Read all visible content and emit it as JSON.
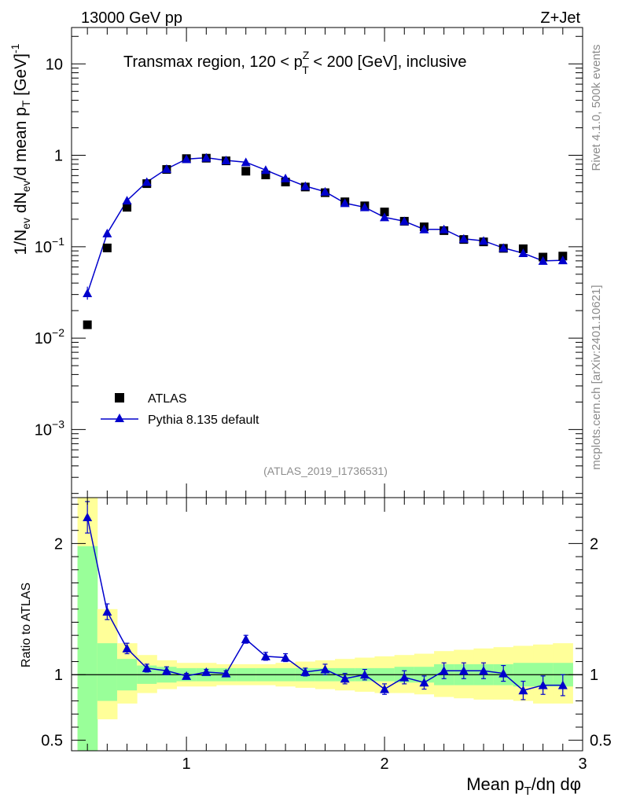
{
  "header": {
    "energy": "13000 GeV pp",
    "process": "Z+Jet"
  },
  "side_texts": {
    "rivet": "Rivet 4.1.0,  500k events",
    "mcplots": "mcplots.cern.ch [arXiv:2401.10621]"
  },
  "colors": {
    "data_marker": "#000000",
    "mc_line": "#0000cc",
    "band_inner": "#99ff99",
    "band_outer": "#ffff99"
  },
  "chart_data": [
    {
      "type": "scatter",
      "panel": "main",
      "title": "Transmax region, 120 < p_T^Z < 200 [GeV], inclusive",
      "title_parts": {
        "pre": "Transmax region, 120 < p",
        "sup": "Z",
        "sub": "T",
        "post": " < 200 [GeV], inclusive"
      },
      "ylabel": "1/N_ev dN_ev/d mean p_T [GeV]^-1",
      "ylabel_parts": {
        "a": "1/N",
        "a_sub": "ev",
        "b": " dN",
        "b_sub": "ev",
        "c": "/d mean p",
        "c_sub": "T",
        "d": " [GeV]",
        "d_sup": "-1"
      },
      "yscale": "log",
      "ylim": [
        0.00018,
        25
      ],
      "xlim": [
        0.42,
        3.0
      ],
      "yticks": [
        {
          "value": 10,
          "label": "10"
        },
        {
          "value": 1,
          "label": "1"
        },
        {
          "value": 0.1,
          "base": "10",
          "exp": "−1"
        },
        {
          "value": 0.01,
          "base": "10",
          "exp": "−2"
        },
        {
          "value": 0.001,
          "base": "10",
          "exp": "−3"
        }
      ],
      "watermark": "(ATLAS_2019_I1736531)",
      "legend_position": "lower-left",
      "series": [
        {
          "name": "ATLAS",
          "marker": "square",
          "x": [
            0.5,
            0.6,
            0.7,
            0.8,
            0.9,
            1.0,
            1.1,
            1.2,
            1.3,
            1.4,
            1.5,
            1.6,
            1.7,
            1.8,
            1.9,
            2.0,
            2.1,
            2.2,
            2.3,
            2.4,
            2.5,
            2.6,
            2.7,
            2.8,
            2.9
          ],
          "values": [
            0.014,
            0.097,
            0.27,
            0.49,
            0.7,
            0.92,
            0.93,
            0.87,
            0.67,
            0.61,
            0.51,
            0.45,
            0.39,
            0.31,
            0.28,
            0.24,
            0.19,
            0.165,
            0.15,
            0.12,
            0.113,
            0.096,
            0.095,
            0.077,
            0.079
          ]
        },
        {
          "name": "Pythia 8.135 default",
          "marker": "triangle",
          "x": [
            0.5,
            0.6,
            0.7,
            0.8,
            0.9,
            1.0,
            1.1,
            1.2,
            1.3,
            1.4,
            1.5,
            1.6,
            1.7,
            1.8,
            1.9,
            2.0,
            2.1,
            2.2,
            2.3,
            2.4,
            2.5,
            2.6,
            2.7,
            2.8,
            2.9
          ],
          "values": [
            0.031,
            0.14,
            0.32,
            0.51,
            0.71,
            0.91,
            0.94,
            0.88,
            0.84,
            0.69,
            0.56,
            0.46,
            0.4,
            0.3,
            0.27,
            0.21,
            0.19,
            0.155,
            0.155,
            0.122,
            0.116,
            0.097,
            0.085,
            0.07,
            0.071
          ]
        }
      ]
    },
    {
      "type": "line",
      "panel": "ratio",
      "ylabel": "Ratio to ATLAS",
      "xlabel": "Mean p_T/dη dφ",
      "xlabel_parts": {
        "a": "Mean p",
        "a_sub": "T",
        "b": "/dη dφ"
      },
      "xlim": [
        0.42,
        3.0
      ],
      "ylim": [
        0.42,
        2.35
      ],
      "xticks": [
        {
          "value": 1,
          "label": "1"
        },
        {
          "value": 2,
          "label": "2"
        },
        {
          "value": 3,
          "label": "3"
        }
      ],
      "yticks": [
        {
          "value": 2,
          "label": "2"
        },
        {
          "value": 1,
          "label": "1"
        },
        {
          "value": 0.5,
          "label": "0.5"
        }
      ],
      "reference_line": 1,
      "bands": {
        "edges": [
          0.45,
          0.55,
          0.65,
          0.75,
          0.85,
          0.95,
          1.05,
          1.15,
          1.25,
          1.35,
          1.45,
          1.55,
          1.65,
          1.75,
          1.85,
          1.95,
          2.05,
          2.15,
          2.25,
          2.35,
          2.45,
          2.55,
          2.65,
          2.75,
          2.85,
          2.95
        ],
        "inner_lo": [
          0.3,
          0.8,
          0.88,
          0.93,
          0.94,
          0.95,
          0.95,
          0.95,
          0.95,
          0.95,
          0.95,
          0.95,
          0.95,
          0.95,
          0.95,
          0.95,
          0.94,
          0.94,
          0.92,
          0.92,
          0.92,
          0.92,
          0.91,
          0.91,
          0.91
        ],
        "inner_hi": [
          1.98,
          1.24,
          1.12,
          1.07,
          1.06,
          1.05,
          1.05,
          1.05,
          1.05,
          1.05,
          1.05,
          1.05,
          1.05,
          1.05,
          1.05,
          1.05,
          1.06,
          1.06,
          1.08,
          1.08,
          1.08,
          1.08,
          1.09,
          1.09,
          1.09
        ],
        "outer_lo": [
          0.3,
          0.66,
          0.78,
          0.86,
          0.89,
          0.91,
          0.91,
          0.92,
          0.92,
          0.92,
          0.91,
          0.9,
          0.89,
          0.88,
          0.87,
          0.86,
          0.86,
          0.85,
          0.83,
          0.82,
          0.81,
          0.81,
          0.8,
          0.78,
          0.78
        ],
        "outer_hi": [
          2.35,
          1.5,
          1.24,
          1.15,
          1.11,
          1.09,
          1.09,
          1.08,
          1.08,
          1.08,
          1.09,
          1.1,
          1.11,
          1.12,
          1.13,
          1.14,
          1.15,
          1.16,
          1.18,
          1.19,
          1.2,
          1.21,
          1.22,
          1.23,
          1.24
        ]
      },
      "series": [
        {
          "name": "Pythia 8.135 default / ATLAS",
          "x": [
            0.5,
            0.6,
            0.7,
            0.8,
            0.9,
            1.0,
            1.1,
            1.2,
            1.3,
            1.4,
            1.5,
            1.6,
            1.7,
            1.8,
            1.9,
            2.0,
            2.1,
            2.2,
            2.3,
            2.4,
            2.5,
            2.6,
            2.7,
            2.8,
            2.9
          ],
          "values": [
            2.2,
            1.48,
            1.2,
            1.05,
            1.03,
            0.99,
            1.02,
            1.01,
            1.27,
            1.14,
            1.13,
            1.02,
            1.04,
            0.97,
            1.0,
            0.89,
            0.98,
            0.94,
            1.03,
            1.03,
            1.03,
            1.01,
            0.88,
            0.92,
            0.92
          ],
          "err": [
            0.12,
            0.06,
            0.04,
            0.03,
            0.03,
            0.02,
            0.02,
            0.02,
            0.03,
            0.03,
            0.03,
            0.03,
            0.04,
            0.04,
            0.04,
            0.04,
            0.05,
            0.05,
            0.06,
            0.06,
            0.06,
            0.06,
            0.07,
            0.07,
            0.08
          ]
        }
      ]
    }
  ]
}
